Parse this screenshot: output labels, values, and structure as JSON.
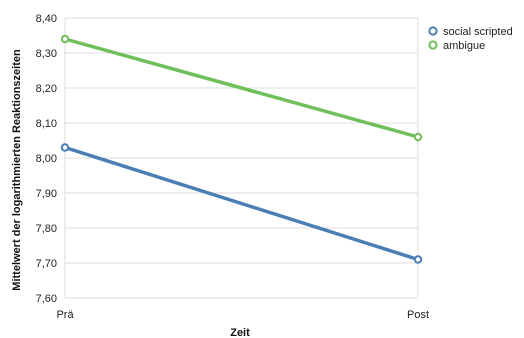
{
  "chart_data": {
    "type": "line",
    "title": "",
    "xlabel": "Zeit",
    "ylabel": "Mittelwert der logarithmierten Reaktionszeiten",
    "categories": [
      "Prä",
      "Post"
    ],
    "y_tick_labels": [
      "8,40",
      "8,30",
      "8,20",
      "8,10",
      "8,00",
      "7,90",
      "7,80",
      "7,70",
      "7,60"
    ],
    "y_ticks": [
      8.4,
      8.3,
      8.2,
      8.1,
      8.0,
      7.9,
      7.8,
      7.7,
      7.6
    ],
    "ylim": [
      7.6,
      8.4
    ],
    "grid": "horizontal",
    "legend_position": "top-right",
    "series": [
      {
        "name": "social scripted",
        "color": "#4a7fb5",
        "values": [
          8.03,
          7.71
        ]
      },
      {
        "name": "ambigue",
        "color": "#6fbf5a",
        "values": [
          8.34,
          8.06
        ]
      }
    ]
  }
}
